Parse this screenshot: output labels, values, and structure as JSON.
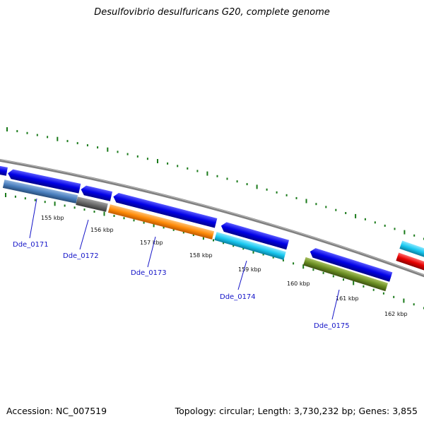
{
  "title": "Desulfovibrio desulfuricans G20, complete genome",
  "footer": {
    "accession": "Accession: NC_007519",
    "summary": "Topology: circular; Length: 3,730,232 bp; Genes: 3,855"
  },
  "colors": {
    "backbone": "#7f7f7f",
    "tick": "#1a7a1a",
    "label_text": "#1515c8",
    "forward_gene": "#0000e6"
  },
  "kbp_labels": [
    "155 kbp",
    "156 kbp",
    "157 kbp",
    "158 kbp",
    "159 kbp",
    "160 kbp",
    "161 kbp",
    "162 kbp"
  ],
  "gene_labels": [
    "Dde_0171",
    "Dde_0172",
    "Dde_0173",
    "Dde_0174",
    "Dde_0175"
  ],
  "reverse_genes": [
    {
      "color": "#4a7fbf"
    },
    {
      "color": "#6a6a6a"
    },
    {
      "color": "#ff8c0a"
    },
    {
      "color": "#19c8f0"
    },
    {
      "color": "#6b8e23"
    },
    {
      "color": "#19c8f0"
    },
    {
      "color": "#e60000"
    }
  ]
}
